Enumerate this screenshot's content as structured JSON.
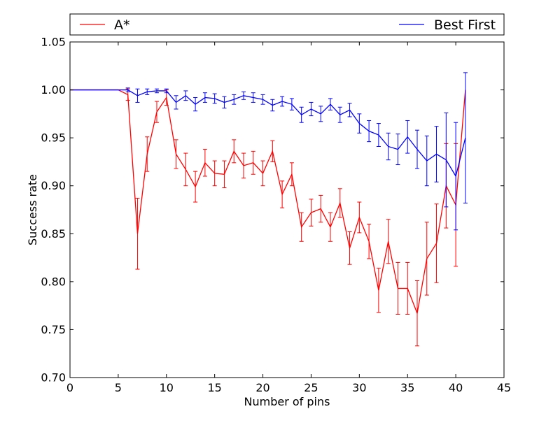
{
  "chart_data": {
    "type": "line",
    "title": "",
    "xlabel": "Number of pins",
    "ylabel": "Success rate",
    "xlim": [
      0,
      45
    ],
    "ylim": [
      0.7,
      1.05
    ],
    "x_ticks": [
      0,
      5,
      10,
      15,
      20,
      25,
      30,
      35,
      40,
      45
    ],
    "x_tick_labels": [
      "0",
      "5",
      "10",
      "15",
      "20",
      "25",
      "30",
      "35",
      "40",
      "45"
    ],
    "y_ticks": [
      0.7,
      0.75,
      0.8,
      0.85,
      0.9,
      0.95,
      1.0,
      1.05
    ],
    "y_tick_labels": [
      "0.70",
      "0.75",
      "0.80",
      "0.85",
      "0.90",
      "0.95",
      "1.00",
      "1.05"
    ],
    "grid": false,
    "legend_placement": "top, outside plot area, spanning width",
    "series": [
      {
        "name": "A*",
        "color": "#ff0000",
        "x": [
          0,
          1,
          2,
          3,
          4,
          5,
          6,
          7,
          8,
          9,
          10,
          11,
          12,
          13,
          14,
          15,
          16,
          17,
          18,
          19,
          20,
          21,
          22,
          23,
          24,
          25,
          26,
          27,
          28,
          29,
          30,
          31,
          32,
          33,
          34,
          35,
          36,
          37,
          38,
          39,
          40,
          41
        ],
        "y": [
          1.0,
          1.0,
          1.0,
          1.0,
          1.0,
          1.0,
          0.995,
          0.85,
          0.933,
          0.977,
          0.992,
          0.933,
          0.917,
          0.899,
          0.924,
          0.913,
          0.912,
          0.936,
          0.921,
          0.924,
          0.913,
          0.936,
          0.891,
          0.912,
          0.857,
          0.872,
          0.876,
          0.857,
          0.882,
          0.835,
          0.867,
          0.842,
          0.791,
          0.842,
          0.793,
          0.793,
          0.767,
          0.824,
          0.84,
          0.9,
          0.88,
          1.0
        ],
        "err": [
          0,
          0,
          0,
          0,
          0,
          0,
          0.006,
          0.037,
          0.018,
          0.011,
          0.008,
          0.015,
          0.017,
          0.016,
          0.014,
          0.013,
          0.014,
          0.012,
          0.013,
          0.012,
          0.013,
          0.011,
          0.014,
          0.012,
          0.015,
          0.014,
          0.014,
          0.015,
          0.015,
          0.017,
          0.016,
          0.018,
          0.023,
          0.023,
          0.027,
          0.027,
          0.034,
          0.038,
          0.041,
          0.044,
          0.064,
          0.0
        ]
      },
      {
        "name": "Best First",
        "color": "#0000ff",
        "x": [
          0,
          1,
          2,
          3,
          4,
          5,
          6,
          7,
          8,
          9,
          10,
          11,
          12,
          13,
          14,
          15,
          16,
          17,
          18,
          19,
          20,
          21,
          22,
          23,
          24,
          25,
          26,
          27,
          28,
          29,
          30,
          31,
          32,
          33,
          34,
          35,
          36,
          37,
          38,
          39,
          40,
          41
        ],
        "y": [
          1.0,
          1.0,
          1.0,
          1.0,
          1.0,
          1.0,
          1.0,
          0.994,
          0.998,
          0.999,
          0.999,
          0.987,
          0.994,
          0.985,
          0.992,
          0.991,
          0.987,
          0.99,
          0.994,
          0.992,
          0.99,
          0.984,
          0.988,
          0.985,
          0.974,
          0.98,
          0.975,
          0.985,
          0.974,
          0.979,
          0.965,
          0.957,
          0.953,
          0.941,
          0.938,
          0.951,
          0.938,
          0.926,
          0.933,
          0.927,
          0.91,
          0.95
        ],
        "err": [
          0,
          0,
          0,
          0,
          0,
          0,
          0.002,
          0.007,
          0.003,
          0.002,
          0.002,
          0.007,
          0.005,
          0.007,
          0.005,
          0.005,
          0.006,
          0.005,
          0.004,
          0.005,
          0.005,
          0.006,
          0.005,
          0.006,
          0.008,
          0.007,
          0.008,
          0.006,
          0.008,
          0.007,
          0.01,
          0.011,
          0.012,
          0.014,
          0.016,
          0.017,
          0.02,
          0.026,
          0.029,
          0.049,
          0.056,
          0.068
        ]
      }
    ]
  }
}
